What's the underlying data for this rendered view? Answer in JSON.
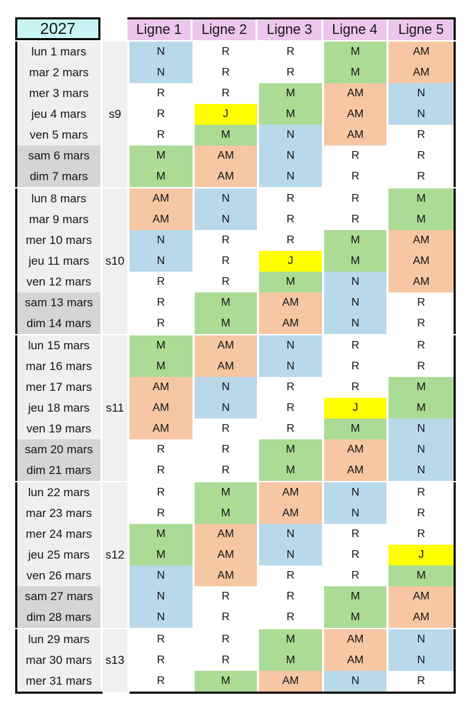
{
  "header": {
    "year": "2027",
    "line_columns": [
      "Ligne 1",
      "Ligne 2",
      "Ligne 3",
      "Ligne 4",
      "Ligne 5"
    ]
  },
  "shift_colors": {
    "N": "#B9D9EB",
    "R": "#FFFFFF",
    "M": "#ACDB95",
    "AM": "#F6C7A2",
    "J": "#FFFF00"
  },
  "ui_colors": {
    "year_bg": "#C9F4F4",
    "ligne_header_bg": "#ECC6EB",
    "date_bg": "#EFEFEF",
    "weekend_date_bg": "#D5D5D5",
    "week_col_bg": "#F0F0F0",
    "border": "#000000"
  },
  "weeks": [
    {
      "label": "s9",
      "days": [
        {
          "date": "lun 1 mars",
          "weekend": false,
          "shifts": [
            "N",
            "R",
            "R",
            "M",
            "AM"
          ]
        },
        {
          "date": "mar 2 mars",
          "weekend": false,
          "shifts": [
            "N",
            "R",
            "R",
            "M",
            "AM"
          ]
        },
        {
          "date": "mer 3 mars",
          "weekend": false,
          "shifts": [
            "R",
            "R",
            "M",
            "AM",
            "N"
          ]
        },
        {
          "date": "jeu 4 mars",
          "weekend": false,
          "shifts": [
            "R",
            "J",
            "M",
            "AM",
            "N"
          ]
        },
        {
          "date": "ven 5 mars",
          "weekend": false,
          "shifts": [
            "R",
            "M",
            "N",
            "AM",
            "R"
          ]
        },
        {
          "date": "sam 6 mars",
          "weekend": true,
          "shifts": [
            "M",
            "AM",
            "N",
            "R",
            "R"
          ]
        },
        {
          "date": "dim 7 mars",
          "weekend": true,
          "shifts": [
            "M",
            "AM",
            "N",
            "R",
            "R"
          ]
        }
      ]
    },
    {
      "label": "s10",
      "days": [
        {
          "date": "lun 8 mars",
          "weekend": false,
          "shifts": [
            "AM",
            "N",
            "R",
            "R",
            "M"
          ]
        },
        {
          "date": "mar 9 mars",
          "weekend": false,
          "shifts": [
            "AM",
            "N",
            "R",
            "R",
            "M"
          ]
        },
        {
          "date": "mer 10 mars",
          "weekend": false,
          "shifts": [
            "N",
            "R",
            "R",
            "M",
            "AM"
          ]
        },
        {
          "date": "jeu 11 mars",
          "weekend": false,
          "shifts": [
            "N",
            "R",
            "J",
            "M",
            "AM"
          ]
        },
        {
          "date": "ven 12 mars",
          "weekend": false,
          "shifts": [
            "R",
            "R",
            "M",
            "N",
            "AM"
          ]
        },
        {
          "date": "sam 13 mars",
          "weekend": true,
          "shifts": [
            "R",
            "M",
            "AM",
            "N",
            "R"
          ]
        },
        {
          "date": "dim 14 mars",
          "weekend": true,
          "shifts": [
            "R",
            "M",
            "AM",
            "N",
            "R"
          ]
        }
      ]
    },
    {
      "label": "s11",
      "days": [
        {
          "date": "lun 15 mars",
          "weekend": false,
          "shifts": [
            "M",
            "AM",
            "N",
            "R",
            "R"
          ]
        },
        {
          "date": "mar 16 mars",
          "weekend": false,
          "shifts": [
            "M",
            "AM",
            "N",
            "R",
            "R"
          ]
        },
        {
          "date": "mer 17 mars",
          "weekend": false,
          "shifts": [
            "AM",
            "N",
            "R",
            "R",
            "M"
          ]
        },
        {
          "date": "jeu 18 mars",
          "weekend": false,
          "shifts": [
            "AM",
            "N",
            "R",
            "J",
            "M"
          ]
        },
        {
          "date": "ven 19 mars",
          "weekend": false,
          "shifts": [
            "AM",
            "R",
            "R",
            "M",
            "N"
          ]
        },
        {
          "date": "sam 20 mars",
          "weekend": true,
          "shifts": [
            "R",
            "R",
            "M",
            "AM",
            "N"
          ]
        },
        {
          "date": "dim 21 mars",
          "weekend": true,
          "shifts": [
            "R",
            "R",
            "M",
            "AM",
            "N"
          ]
        }
      ]
    },
    {
      "label": "s12",
      "days": [
        {
          "date": "lun 22 mars",
          "weekend": false,
          "shifts": [
            "R",
            "M",
            "AM",
            "N",
            "R"
          ]
        },
        {
          "date": "mar 23 mars",
          "weekend": false,
          "shifts": [
            "R",
            "M",
            "AM",
            "N",
            "R"
          ]
        },
        {
          "date": "mer 24 mars",
          "weekend": false,
          "shifts": [
            "M",
            "AM",
            "N",
            "R",
            "R"
          ]
        },
        {
          "date": "jeu 25 mars",
          "weekend": false,
          "shifts": [
            "M",
            "AM",
            "N",
            "R",
            "J"
          ]
        },
        {
          "date": "ven 26 mars",
          "weekend": false,
          "shifts": [
            "N",
            "AM",
            "R",
            "R",
            "M"
          ]
        },
        {
          "date": "sam 27 mars",
          "weekend": true,
          "shifts": [
            "N",
            "R",
            "R",
            "M",
            "AM"
          ]
        },
        {
          "date": "dim 28 mars",
          "weekend": true,
          "shifts": [
            "N",
            "R",
            "R",
            "M",
            "AM"
          ]
        }
      ]
    },
    {
      "label": "s13",
      "days": [
        {
          "date": "lun 29 mars",
          "weekend": false,
          "shifts": [
            "R",
            "R",
            "M",
            "AM",
            "N"
          ]
        },
        {
          "date": "mar 30 mars",
          "weekend": false,
          "shifts": [
            "R",
            "R",
            "M",
            "AM",
            "N"
          ]
        },
        {
          "date": "mer 31 mars",
          "weekend": false,
          "shifts": [
            "R",
            "M",
            "AM",
            "N",
            "R"
          ]
        }
      ]
    }
  ]
}
